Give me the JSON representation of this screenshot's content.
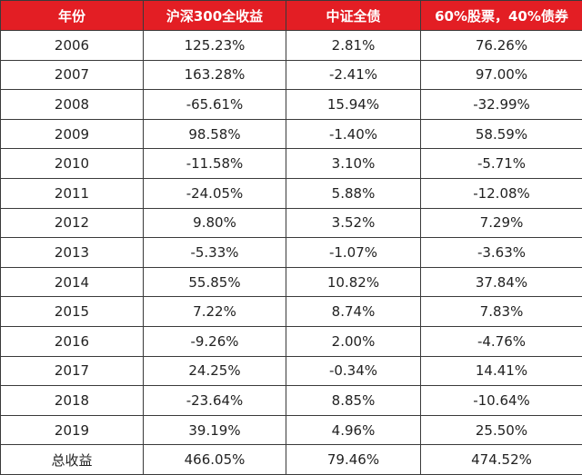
{
  "table": {
    "headers": [
      "年份",
      "沪深300全收益",
      "中证全债",
      "60%股票，40%债券"
    ],
    "rows": [
      [
        "2006",
        "125.23%",
        "2.81%",
        "76.26%"
      ],
      [
        "2007",
        "163.28%",
        "-2.41%",
        "97.00%"
      ],
      [
        "2008",
        "-65.61%",
        "15.94%",
        "-32.99%"
      ],
      [
        "2009",
        "98.58%",
        "-1.40%",
        "58.59%"
      ],
      [
        "2010",
        "-11.58%",
        "3.10%",
        "-5.71%"
      ],
      [
        "2011",
        "-24.05%",
        "5.88%",
        "-12.08%"
      ],
      [
        "2012",
        "9.80%",
        "3.52%",
        "7.29%"
      ],
      [
        "2013",
        "-5.33%",
        "-1.07%",
        "-3.63%"
      ],
      [
        "2014",
        "55.85%",
        "10.82%",
        "37.84%"
      ],
      [
        "2015",
        "7.22%",
        "8.74%",
        "7.83%"
      ],
      [
        "2016",
        "-9.26%",
        "2.00%",
        "-4.76%"
      ],
      [
        "2017",
        "24.25%",
        "-0.34%",
        "14.41%"
      ],
      [
        "2018",
        "-23.64%",
        "8.85%",
        "-10.64%"
      ],
      [
        "2019",
        "39.19%",
        "4.96%",
        "25.50%"
      ],
      [
        "总收益",
        "466.05%",
        "79.46%",
        "474.52%"
      ]
    ],
    "colors": {
      "header_bg": "#e31e24",
      "header_text": "#ffffff",
      "border": "#3a3a3a"
    }
  }
}
